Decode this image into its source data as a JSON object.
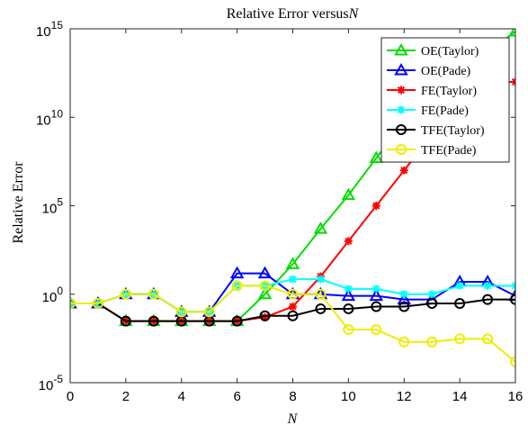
{
  "chart_data": {
    "type": "line",
    "title": "Relative Error versus",
    "title_var": "N",
    "xlabel": "N",
    "ylabel": "Relative Error",
    "x_scale": "linear",
    "y_scale": "log",
    "xlim": [
      0,
      16
    ],
    "ylim": [
      1e-05,
      1000000000000000.0
    ],
    "x_ticks": [
      0,
      2,
      4,
      6,
      8,
      10,
      12,
      14,
      16
    ],
    "x_tick_labels": [
      "0",
      "2",
      "4",
      "6",
      "8",
      "10",
      "12",
      "14",
      "16"
    ],
    "y_tick_exponents": [
      -5,
      0,
      5,
      10,
      15
    ],
    "y_tick_labels": [
      "10",
      "10",
      "10",
      "10",
      "10"
    ],
    "y_tick_sups": [
      "-5",
      "0",
      "5",
      "10",
      "15"
    ],
    "grid": false,
    "legend_position": "top-right",
    "x": [
      0,
      1,
      2,
      3,
      4,
      5,
      6,
      7,
      8,
      9,
      10,
      11,
      12,
      13,
      14,
      15,
      16
    ],
    "series": [
      {
        "name": "OE(Taylor)",
        "color": "#00dd00",
        "marker": "triangle",
        "values": [
          0.3,
          0.3,
          0.03,
          0.03,
          0.03,
          0.03,
          0.03,
          1,
          50,
          5000,
          400000.0,
          50000000.0,
          5000000000.0,
          500000000000.0,
          5000000000000.0,
          50000000000000.0,
          700000000000000.0
        ]
      },
      {
        "name": "OE(Pade)",
        "color": "#0000ff",
        "marker": "triangle",
        "values": [
          0.3,
          0.3,
          1,
          1,
          0.1,
          0.1,
          15,
          15,
          1,
          1,
          0.8,
          0.8,
          0.5,
          0.5,
          5,
          5,
          0.8
        ]
      },
      {
        "name": "FE(Taylor)",
        "color": "#ff0000",
        "marker": "asterisk",
        "values": [
          0.3,
          0.3,
          0.03,
          0.03,
          0.03,
          0.03,
          0.03,
          0.05,
          0.2,
          10,
          1000.0,
          100000.0,
          10000000.0,
          1000000000.0,
          100000000000.0,
          1000000000000.0,
          1000000000000.0
        ]
      },
      {
        "name": "FE(Pade)",
        "color": "#00ffff",
        "marker": "asterisk",
        "values": [
          0.3,
          0.3,
          1,
          1,
          0.1,
          0.1,
          3,
          3,
          7,
          7,
          2,
          2,
          1,
          1,
          3,
          3,
          3
        ]
      },
      {
        "name": "TFE(Taylor)",
        "color": "#000000",
        "marker": "circle",
        "values": [
          0.3,
          0.3,
          0.03,
          0.03,
          0.03,
          0.03,
          0.03,
          0.06,
          0.06,
          0.15,
          0.15,
          0.2,
          0.2,
          0.3,
          0.3,
          0.5,
          0.5
        ]
      },
      {
        "name": "TFE(Pade)",
        "color": "#eeee00",
        "marker": "circle",
        "values": [
          0.3,
          0.3,
          1,
          1,
          0.1,
          0.1,
          3,
          3,
          1,
          1,
          0.01,
          0.01,
          0.002,
          0.002,
          0.003,
          0.003,
          0.00015
        ]
      }
    ]
  }
}
